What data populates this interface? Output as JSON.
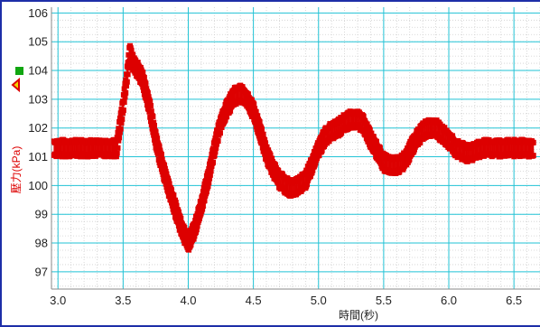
{
  "colors": {
    "frame": "#1e2ea8",
    "grid_major": "#22c3d6",
    "grid_minor": "#cfcfcf",
    "series": "#dd0000",
    "ylabel": "#dd0000",
    "legend_green": "#11a611",
    "legend_marker": "#f2d400"
  },
  "legend": {
    "marker_icon": "warning-triangle-icon",
    "swatch": "green-square"
  },
  "chart_data": {
    "type": "line",
    "xlabel": "時間(秒)",
    "ylabel": "壓力(kPa)",
    "xlim": [
      2.95,
      6.7
    ],
    "ylim": [
      96.4,
      106.2
    ],
    "xticks": [
      "3.0",
      "3.5",
      "4.0",
      "4.5",
      "5.0",
      "5.5",
      "6.0",
      "6.5"
    ],
    "yticks": [
      "97",
      "98",
      "99",
      "100",
      "101",
      "102",
      "103",
      "104",
      "105",
      "106"
    ],
    "grid": true,
    "series": [
      {
        "name": "",
        "style": "square markers, dense noisy band",
        "x": [
          2.97,
          3.05,
          3.15,
          3.25,
          3.35,
          3.45,
          3.5,
          3.53,
          3.55,
          3.57,
          3.6,
          3.65,
          3.7,
          3.75,
          3.8,
          3.85,
          3.9,
          3.95,
          4.0,
          4.05,
          4.1,
          4.15,
          4.2,
          4.25,
          4.3,
          4.35,
          4.4,
          4.45,
          4.5,
          4.55,
          4.6,
          4.65,
          4.7,
          4.75,
          4.8,
          4.85,
          4.9,
          4.95,
          5.0,
          5.05,
          5.1,
          5.15,
          5.2,
          5.25,
          5.3,
          5.35,
          5.4,
          5.45,
          5.5,
          5.55,
          5.6,
          5.65,
          5.7,
          5.75,
          5.8,
          5.85,
          5.9,
          5.95,
          6.0,
          6.05,
          6.1,
          6.15,
          6.2,
          6.25,
          6.3,
          6.35,
          6.4,
          6.45,
          6.5,
          6.55,
          6.6,
          6.65
        ],
        "y": [
          101.3,
          101.3,
          101.3,
          101.3,
          101.3,
          101.3,
          102.8,
          103.8,
          104.7,
          104.3,
          104.1,
          103.7,
          102.8,
          101.6,
          100.7,
          99.9,
          99.2,
          98.5,
          98.0,
          98.5,
          99.3,
          100.2,
          101.3,
          102.2,
          102.7,
          103.1,
          103.2,
          103.0,
          102.6,
          101.9,
          101.1,
          100.6,
          100.2,
          100.0,
          99.9,
          100.0,
          100.2,
          100.7,
          101.3,
          101.7,
          101.9,
          102.0,
          102.2,
          102.3,
          102.3,
          102.1,
          101.6,
          101.2,
          100.8,
          100.7,
          100.7,
          100.8,
          101.2,
          101.6,
          101.9,
          102.0,
          102.0,
          101.8,
          101.6,
          101.3,
          101.2,
          101.1,
          101.2,
          101.3,
          101.3,
          101.3,
          101.3,
          101.3,
          101.3,
          101.3,
          101.3,
          101.3
        ],
        "noise_kPa": 0.6
      }
    ]
  }
}
